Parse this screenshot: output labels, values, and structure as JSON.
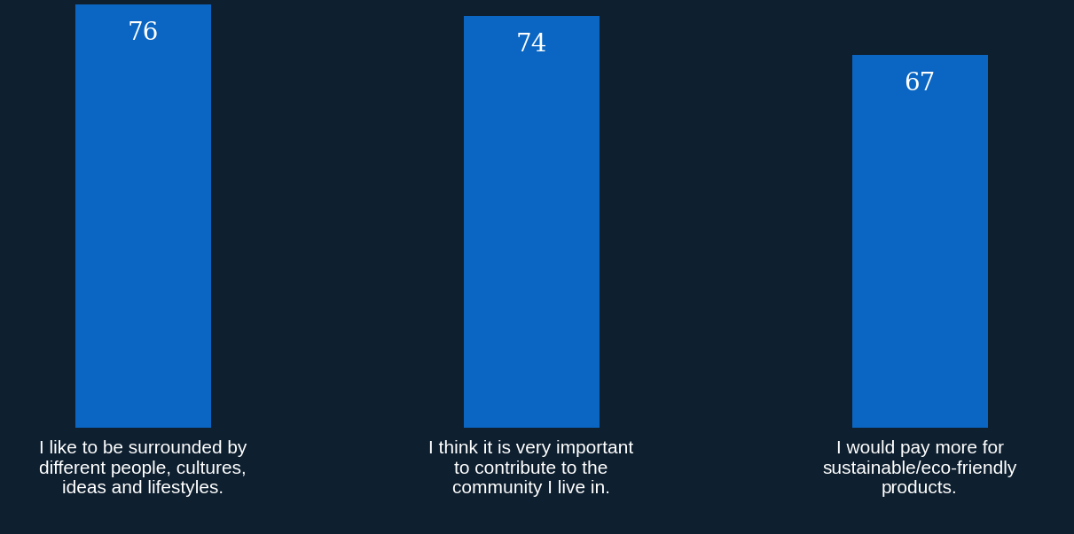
{
  "chart_data": {
    "type": "bar",
    "categories": [
      "I like to be surrounded by\ndifferent people, cultures,\nideas and lifestyles.",
      "I think it is very important\nto contribute to the\ncommunity I live in.",
      "I would pay more for\nsustainable/eco-friendly\nproducts."
    ],
    "values": [
      76,
      74,
      67
    ],
    "color": "#0a66c2",
    "ylim": [
      0,
      76
    ],
    "data_labels": true,
    "tick_labels": "x",
    "grid": false
  }
}
